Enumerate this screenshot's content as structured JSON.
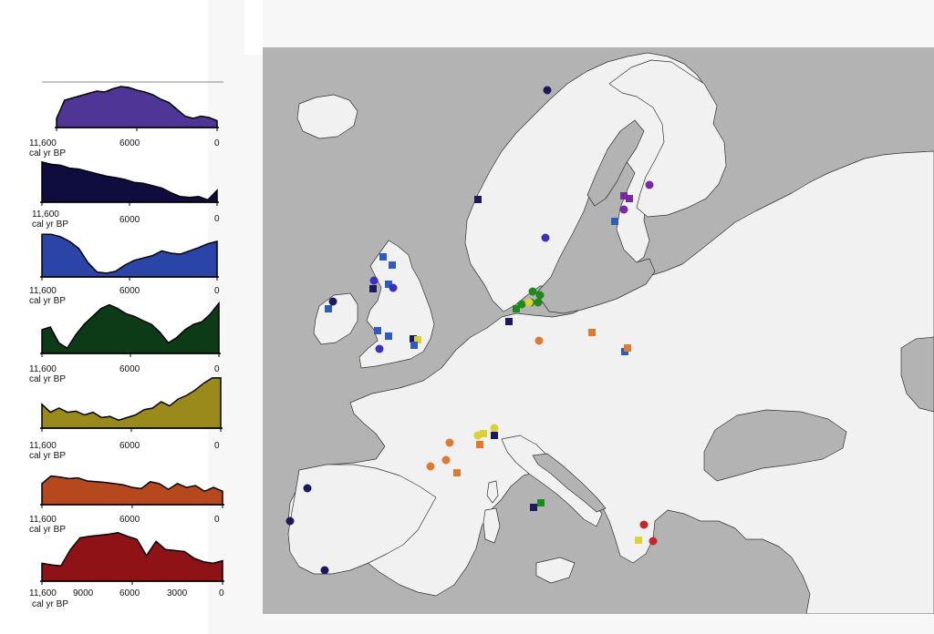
{
  "panels": [
    {
      "color": "#4f3696",
      "xstart": "11,600",
      "xmid": "6000",
      "xend": "0",
      "unit": "cal yr BP"
    },
    {
      "color": "#0f0c40",
      "xstart": "11,600",
      "xmid": "6000",
      "xend": "0",
      "unit": "cal yr BP"
    },
    {
      "color": "#2a44a8",
      "xstart": "11,600",
      "xmid": "6000",
      "xend": "0",
      "unit": "cal yr BP"
    },
    {
      "color": "#0d3a17",
      "xstart": "11,600",
      "xmid": "6000",
      "xend": "0",
      "unit": "cal yr BP"
    },
    {
      "color": "#9a8a1c",
      "xstart": "11,600",
      "xmid": "6000",
      "xend": "0",
      "unit": "cal yr BP"
    },
    {
      "color": "#b5481c",
      "xstart": "11,600",
      "xmid": "6000",
      "xend": "0",
      "unit": "cal yr BP"
    },
    {
      "color": "#8e1216",
      "xstart": "11,600",
      "xmid": "9000",
      "xmid2": "6000",
      "xmid3": "3000",
      "xend": "0",
      "unit": "cal yr BP"
    }
  ],
  "map": {
    "sea_color": "#b3b3b3",
    "land_color": "#f1f1f1",
    "site_colors": {
      "purple": "#7a2aa0",
      "navy": "#1b1a5a",
      "blue": "#2f5bbf",
      "violet": "#3c2fc0",
      "green": "#1e8a1e",
      "yellow": "#d9d136",
      "orange": "#dd7a36",
      "red": "#c4262a"
    }
  }
}
